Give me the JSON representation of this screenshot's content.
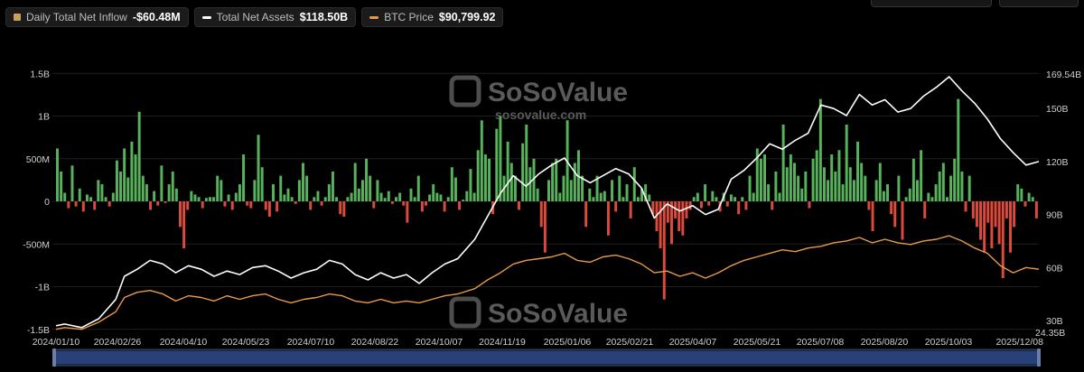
{
  "legend": {
    "inflow": {
      "label": "Daily Total Net Inflow",
      "value": "-$60.48M",
      "color": "#c9a25a"
    },
    "assets": {
      "label": "Total Net Assets",
      "value": "$118.50B",
      "color": "#ffffff"
    },
    "btc": {
      "label": "BTC Price",
      "value": "$90,799.92",
      "color": "#e8994a"
    }
  },
  "watermark": {
    "brand": "SoSoValue",
    "url": "sosovalue.com"
  },
  "colors": {
    "positive": "#57b25b",
    "negative": "#dd4a3c",
    "assets_line": "#ffffff",
    "btc_line": "#e8994a",
    "navigator": "#2f4b8f"
  },
  "chart_data": {
    "type": "bar",
    "title": "",
    "x_ticks": [
      "2024/01/10",
      "2024/02/26",
      "2024/04/10",
      "2024/05/23",
      "2024/07/10",
      "2024/08/22",
      "2024/10/07",
      "2024/11/19",
      "2025/01/06",
      "2025/02/21",
      "2025/04/07",
      "2025/05/21",
      "2025/07/08",
      "2025/08/20",
      "2025/10/03",
      "2025/12/08"
    ],
    "left_axis": {
      "ticks": [
        "-1.5B",
        "-1B",
        "-500M",
        "0",
        "500M",
        "1B",
        "1.5B"
      ],
      "values": [
        -1.5,
        -1,
        -0.5,
        0,
        0.5,
        1,
        1.5
      ],
      "range": [
        -1.5,
        1.5
      ]
    },
    "right_axis": {
      "ticks": [
        "30B",
        "60B",
        "90B",
        "120B",
        "150B",
        "169.54B"
      ],
      "values": [
        30,
        60,
        90,
        120,
        150,
        169.54
      ],
      "extra_tick": "24.35B",
      "range": [
        24.35,
        169.54
      ]
    },
    "inflow_series": {
      "name": "Daily Total Net Inflow",
      "unit": "B USD",
      "values": [
        0.62,
        0.35,
        0.1,
        -0.08,
        0.42,
        -0.06,
        0.15,
        -0.12,
        0.08,
        0.05,
        -0.1,
        0.25,
        0.2,
        0.05,
        -0.06,
        0.1,
        0.48,
        0.35,
        0.62,
        0.28,
        0.7,
        0.55,
        1.05,
        0.3,
        0.2,
        -0.1,
        0.12,
        -0.05,
        0.42,
        -0.02,
        0.2,
        0.35,
        0.15,
        -0.3,
        -0.55,
        -0.1,
        0.12,
        0.08,
        0.05,
        -0.08,
        0.04,
        0.05,
        0.05,
        0.3,
        0.25,
        -0.06,
        0.08,
        -0.1,
        0.1,
        0.2,
        0.55,
        -0.05,
        -0.08,
        0.25,
        0.78,
        0.4,
        -0.1,
        -0.18,
        0.2,
        -0.12,
        0.3,
        0.08,
        0.15,
        0.05,
        -0.03,
        0.25,
        0.45,
        0.3,
        -0.1,
        0.05,
        0.12,
        -0.05,
        0.05,
        0.2,
        0.35,
        0.05,
        -0.15,
        -0.18,
        0.05,
        0.1,
        0.45,
        0.15,
        0.25,
        0.5,
        0.3,
        -0.08,
        0.25,
        0.1,
        0.04,
        0.12,
        -0.03,
        0.05,
        0.1,
        -0.05,
        -0.25,
        0.15,
        0.05,
        0.3,
        -0.12,
        -0.05,
        0.08,
        0.2,
        0.1,
        0.08,
        -0.12,
        0.05,
        0.4,
        0.28,
        -0.1,
        0.02,
        0.12,
        0.38,
        0.1,
        0.6,
        0.95,
        0.55,
        0.5,
        -0.15,
        0.85,
        1.0,
        0.3,
        0.7,
        0.45,
        0.3,
        -0.1,
        0.68,
        0.9,
        0.4,
        0.5,
        0.15,
        -0.3,
        -0.6,
        0.25,
        0.45,
        0.5,
        0.1,
        0.3,
        0.95,
        0.25,
        0.45,
        0.6,
        0.3,
        -0.3,
        0.15,
        0.05,
        0.3,
        0.1,
        0.12,
        -0.4,
        0.25,
        -0.12,
        0.3,
        0.05,
        0.2,
        -0.2,
        0.4,
        0.05,
        0.15,
        0.2,
        0.08,
        -0.15,
        -0.35,
        -0.55,
        -1.15,
        -0.25,
        -0.5,
        -0.2,
        -0.35,
        -0.4,
        -0.2,
        -0.1,
        0.05,
        0.1,
        -0.08,
        0.2,
        -0.05,
        0.12,
        0.05,
        -0.12,
        0.1,
        -0.06,
        0.08,
        0.05,
        -0.15,
        0.05,
        -0.1,
        0.3,
        0.1,
        0.62,
        0.5,
        0.55,
        0.2,
        -0.1,
        0.35,
        0.1,
        0.9,
        0.4,
        0.55,
        0.45,
        0.3,
        0.15,
        0.35,
        -0.08,
        0.5,
        0.6,
        1.2,
        0.4,
        0.25,
        0.55,
        0.35,
        0.6,
        0.2,
        0.9,
        0.4,
        0.25,
        0.7,
        0.45,
        0.3,
        -0.1,
        -0.35,
        0.25,
        0.45,
        0.12,
        0.2,
        -0.15,
        -0.3,
        0.3,
        -0.45,
        0.05,
        0.15,
        0.5,
        0.25,
        0.6,
        -0.2,
        0.1,
        0.05,
        0.2,
        0.35,
        0.45,
        0.05,
        0.3,
        0.5,
        1.2,
        0.35,
        -0.12,
        0.3,
        -0.2,
        -0.3,
        -0.45,
        -0.6,
        -0.25,
        -0.55,
        -0.3,
        -0.5,
        -0.9,
        -0.2,
        -0.6,
        -0.3,
        0.2,
        0.15,
        -0.06,
        0.1,
        0.05,
        -0.2
      ]
    },
    "assets_series": {
      "name": "Total Net Assets",
      "unit": "B USD",
      "points": [
        [
          0,
          27
        ],
        [
          0.01,
          28
        ],
        [
          0.03,
          26
        ],
        [
          0.05,
          31
        ],
        [
          0.07,
          42
        ],
        [
          0.08,
          55
        ],
        [
          0.095,
          59
        ],
        [
          0.11,
          64
        ],
        [
          0.125,
          62
        ],
        [
          0.14,
          57
        ],
        [
          0.155,
          61
        ],
        [
          0.17,
          59
        ],
        [
          0.185,
          55
        ],
        [
          0.2,
          58
        ],
        [
          0.215,
          56
        ],
        [
          0.23,
          60
        ],
        [
          0.245,
          61
        ],
        [
          0.26,
          58
        ],
        [
          0.275,
          54
        ],
        [
          0.29,
          57
        ],
        [
          0.305,
          59
        ],
        [
          0.32,
          64
        ],
        [
          0.335,
          62
        ],
        [
          0.35,
          56
        ],
        [
          0.365,
          53
        ],
        [
          0.38,
          57
        ],
        [
          0.395,
          54
        ],
        [
          0.41,
          56
        ],
        [
          0.425,
          51
        ],
        [
          0.44,
          57
        ],
        [
          0.455,
          62
        ],
        [
          0.47,
          65
        ],
        [
          0.49,
          76
        ],
        [
          0.505,
          89
        ],
        [
          0.52,
          102
        ],
        [
          0.535,
          112
        ],
        [
          0.55,
          106
        ],
        [
          0.565,
          113
        ],
        [
          0.58,
          118
        ],
        [
          0.595,
          122
        ],
        [
          0.61,
          112
        ],
        [
          0.625,
          108
        ],
        [
          0.64,
          112
        ],
        [
          0.655,
          116
        ],
        [
          0.67,
          113
        ],
        [
          0.685,
          105
        ],
        [
          0.7,
          88
        ],
        [
          0.715,
          96
        ],
        [
          0.73,
          92
        ],
        [
          0.745,
          95
        ],
        [
          0.76,
          90
        ],
        [
          0.775,
          93
        ],
        [
          0.79,
          110
        ],
        [
          0.805,
          115
        ],
        [
          0.82,
          122
        ],
        [
          0.835,
          130
        ],
        [
          0.85,
          127
        ],
        [
          0.865,
          132
        ],
        [
          0.88,
          136
        ],
        [
          0.895,
          152
        ],
        [
          0.91,
          150
        ],
        [
          0.925,
          146
        ],
        [
          0.94,
          158
        ],
        [
          0.955,
          152
        ],
        [
          0.97,
          155
        ],
        [
          0.985,
          148
        ],
        [
          1.0,
          150
        ],
        [
          1.015,
          157
        ],
        [
          1.03,
          162
        ],
        [
          1.045,
          168
        ],
        [
          1.06,
          160
        ],
        [
          1.075,
          153
        ],
        [
          1.09,
          144
        ],
        [
          1.105,
          133
        ],
        [
          1.12,
          125
        ],
        [
          1.135,
          118
        ],
        [
          1.15,
          120
        ]
      ]
    },
    "btc_series": {
      "name": "BTC Price",
      "points": [
        [
          0,
          25
        ],
        [
          0.01,
          26
        ],
        [
          0.03,
          25
        ],
        [
          0.05,
          29
        ],
        [
          0.07,
          35
        ],
        [
          0.08,
          43
        ],
        [
          0.095,
          46
        ],
        [
          0.11,
          47
        ],
        [
          0.125,
          45
        ],
        [
          0.14,
          41
        ],
        [
          0.155,
          44
        ],
        [
          0.17,
          43
        ],
        [
          0.185,
          41
        ],
        [
          0.2,
          44
        ],
        [
          0.215,
          42
        ],
        [
          0.23,
          44
        ],
        [
          0.245,
          45
        ],
        [
          0.26,
          42
        ],
        [
          0.275,
          40
        ],
        [
          0.29,
          42
        ],
        [
          0.305,
          43
        ],
        [
          0.32,
          45
        ],
        [
          0.335,
          44
        ],
        [
          0.35,
          41
        ],
        [
          0.365,
          40
        ],
        [
          0.38,
          42
        ],
        [
          0.395,
          40
        ],
        [
          0.41,
          41
        ],
        [
          0.425,
          40
        ],
        [
          0.44,
          42
        ],
        [
          0.455,
          44
        ],
        [
          0.47,
          45
        ],
        [
          0.49,
          48
        ],
        [
          0.505,
          53
        ],
        [
          0.52,
          57
        ],
        [
          0.535,
          62
        ],
        [
          0.55,
          64
        ],
        [
          0.565,
          65
        ],
        [
          0.58,
          66
        ],
        [
          0.595,
          68
        ],
        [
          0.61,
          64
        ],
        [
          0.625,
          63
        ],
        [
          0.64,
          66
        ],
        [
          0.655,
          67
        ],
        [
          0.67,
          65
        ],
        [
          0.685,
          62
        ],
        [
          0.7,
          57
        ],
        [
          0.715,
          58
        ],
        [
          0.73,
          55
        ],
        [
          0.745,
          57
        ],
        [
          0.76,
          54
        ],
        [
          0.775,
          57
        ],
        [
          0.79,
          61
        ],
        [
          0.805,
          64
        ],
        [
          0.82,
          66
        ],
        [
          0.835,
          68
        ],
        [
          0.85,
          70
        ],
        [
          0.865,
          69
        ],
        [
          0.88,
          71
        ],
        [
          0.895,
          72
        ],
        [
          0.91,
          74
        ],
        [
          0.925,
          75
        ],
        [
          0.94,
          77
        ],
        [
          0.955,
          74
        ],
        [
          0.97,
          76
        ],
        [
          0.985,
          74
        ],
        [
          1.0,
          73
        ],
        [
          1.015,
          75
        ],
        [
          1.03,
          76
        ],
        [
          1.045,
          78
        ],
        [
          1.06,
          75
        ],
        [
          1.075,
          71
        ],
        [
          1.09,
          68
        ],
        [
          1.105,
          61
        ],
        [
          1.12,
          57
        ],
        [
          1.135,
          60
        ],
        [
          1.15,
          59
        ]
      ]
    },
    "grid": true
  }
}
